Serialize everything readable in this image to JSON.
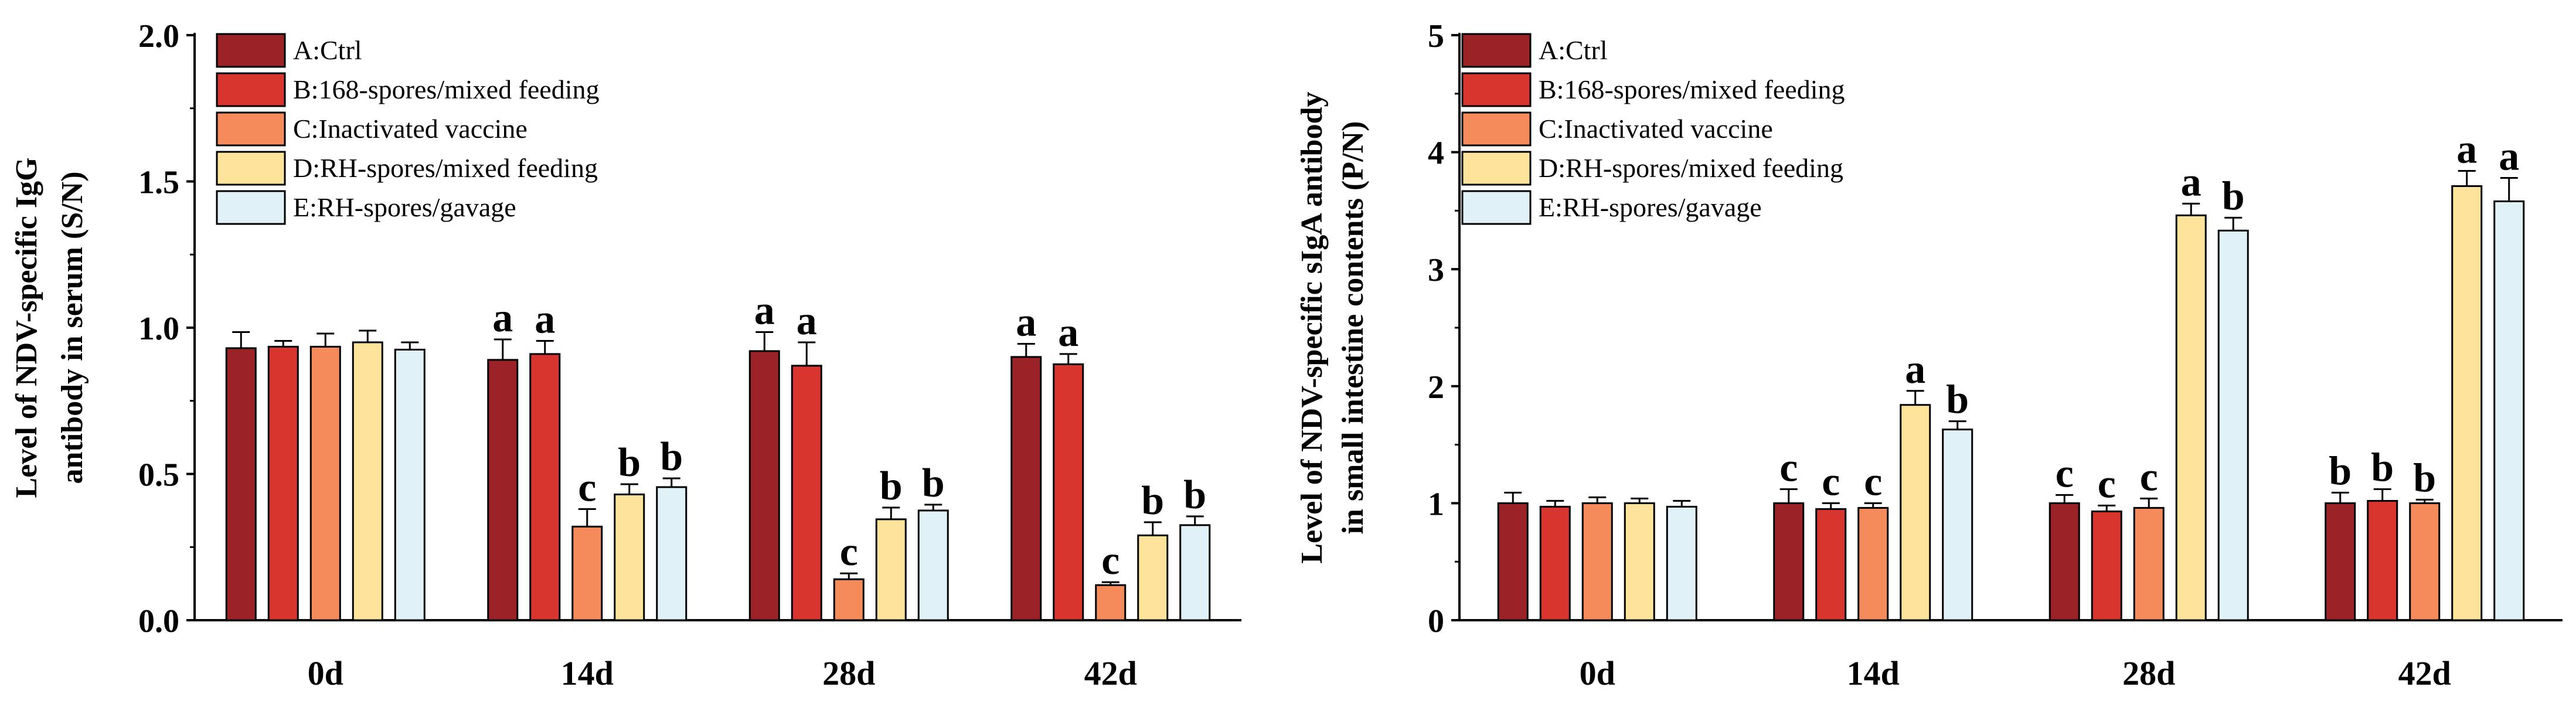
{
  "chart_data": [
    {
      "type": "bar",
      "ylabel_lines": [
        "Level of NDV-specific IgG",
        "antibody in serum (S/N)"
      ],
      "xlabel": "",
      "categories": [
        "0d",
        "14d",
        "28d",
        "42d"
      ],
      "ylim": [
        0,
        2.0
      ],
      "yticks": [
        "0.0",
        "0.5",
        "1.0",
        "1.5",
        "2.0"
      ],
      "ytick_values": [
        0,
        0.5,
        1.0,
        1.5,
        2.0
      ],
      "grid": false,
      "legend_position": "top-left",
      "series": [
        {
          "name": "A:Ctrl",
          "color": "#9b2226",
          "values": [
            0.93,
            0.89,
            0.92,
            0.9
          ],
          "errors": [
            0.055,
            0.07,
            0.065,
            0.045
          ],
          "letters": [
            "",
            "a",
            "a",
            "a"
          ]
        },
        {
          "name": "B:168-spores/mixed feeding",
          "color": "#d7352e",
          "values": [
            0.935,
            0.91,
            0.87,
            0.875
          ],
          "errors": [
            0.02,
            0.045,
            0.08,
            0.035
          ],
          "letters": [
            "",
            "a",
            "a",
            "a"
          ]
        },
        {
          "name": "C:Inactivated vaccine",
          "color": "#f58b5a",
          "values": [
            0.935,
            0.32,
            0.14,
            0.12
          ],
          "errors": [
            0.045,
            0.06,
            0.02,
            0.01
          ],
          "letters": [
            "",
            "c",
            "c",
            "c"
          ]
        },
        {
          "name": "D:RH-spores/mixed feeding",
          "color": "#fde49a",
          "values": [
            0.95,
            0.43,
            0.345,
            0.29
          ],
          "errors": [
            0.04,
            0.035,
            0.04,
            0.045
          ],
          "letters": [
            "",
            "b",
            "b",
            "b"
          ]
        },
        {
          "name": "E:RH-spores/gavage",
          "color": "#e0f2f8",
          "values": [
            0.925,
            0.455,
            0.375,
            0.325
          ],
          "errors": [
            0.025,
            0.03,
            0.02,
            0.03
          ],
          "letters": [
            "",
            "b",
            "b",
            "b"
          ]
        }
      ]
    },
    {
      "type": "bar",
      "ylabel_lines": [
        "Level of NDV-specific sIgA antibody",
        "in small intestine contents (P/N)"
      ],
      "xlabel": "",
      "categories": [
        "0d",
        "14d",
        "28d",
        "42d"
      ],
      "ylim": [
        0,
        5
      ],
      "yticks": [
        "0",
        "1",
        "2",
        "3",
        "4",
        "5"
      ],
      "ytick_values": [
        0,
        1,
        2,
        3,
        4,
        5
      ],
      "grid": false,
      "legend_position": "top-left",
      "series": [
        {
          "name": "A:Ctrl",
          "color": "#9b2226",
          "values": [
            1.0,
            1.0,
            1.0,
            1.0
          ],
          "errors": [
            0.09,
            0.12,
            0.07,
            0.09
          ],
          "letters": [
            "",
            "c",
            "c",
            "b"
          ]
        },
        {
          "name": "B:168-spores/mixed feeding",
          "color": "#d7352e",
          "values": [
            0.97,
            0.95,
            0.93,
            1.02
          ],
          "errors": [
            0.05,
            0.05,
            0.05,
            0.1
          ],
          "letters": [
            "",
            "c",
            "c",
            "b"
          ]
        },
        {
          "name": "C:Inactivated vaccine",
          "color": "#f58b5a",
          "values": [
            1.0,
            0.96,
            0.96,
            1.0
          ],
          "errors": [
            0.05,
            0.04,
            0.08,
            0.03
          ],
          "letters": [
            "",
            "c",
            "c",
            "b"
          ]
        },
        {
          "name": "D:RH-spores/mixed feeding",
          "color": "#fde49a",
          "values": [
            1.0,
            1.84,
            3.46,
            3.71
          ],
          "errors": [
            0.04,
            0.12,
            0.1,
            0.13
          ],
          "letters": [
            "",
            "a",
            "a",
            "a"
          ]
        },
        {
          "name": "E:RH-spores/gavage",
          "color": "#e0f2f8",
          "values": [
            0.97,
            1.63,
            3.33,
            3.58
          ],
          "errors": [
            0.05,
            0.07,
            0.11,
            0.2
          ],
          "letters": [
            "",
            "b",
            "b",
            "a"
          ]
        }
      ]
    }
  ]
}
